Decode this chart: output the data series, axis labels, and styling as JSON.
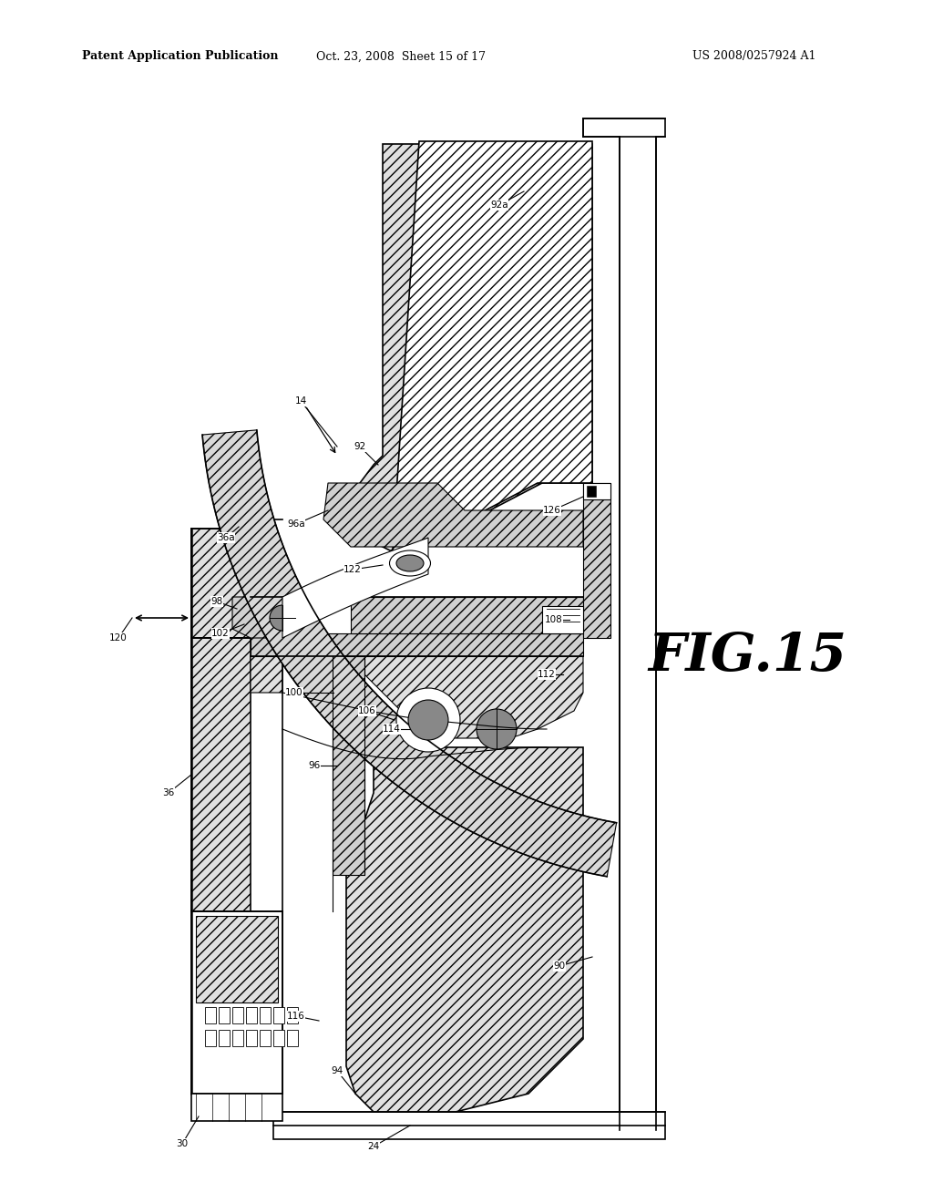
{
  "title_left": "Patent Application Publication",
  "title_mid": "Oct. 23, 2008  Sheet 15 of 17",
  "title_right": "US 2008/0257924 A1",
  "fig_label": "FIG.15",
  "bg_color": "#ffffff",
  "line_color": "#000000"
}
